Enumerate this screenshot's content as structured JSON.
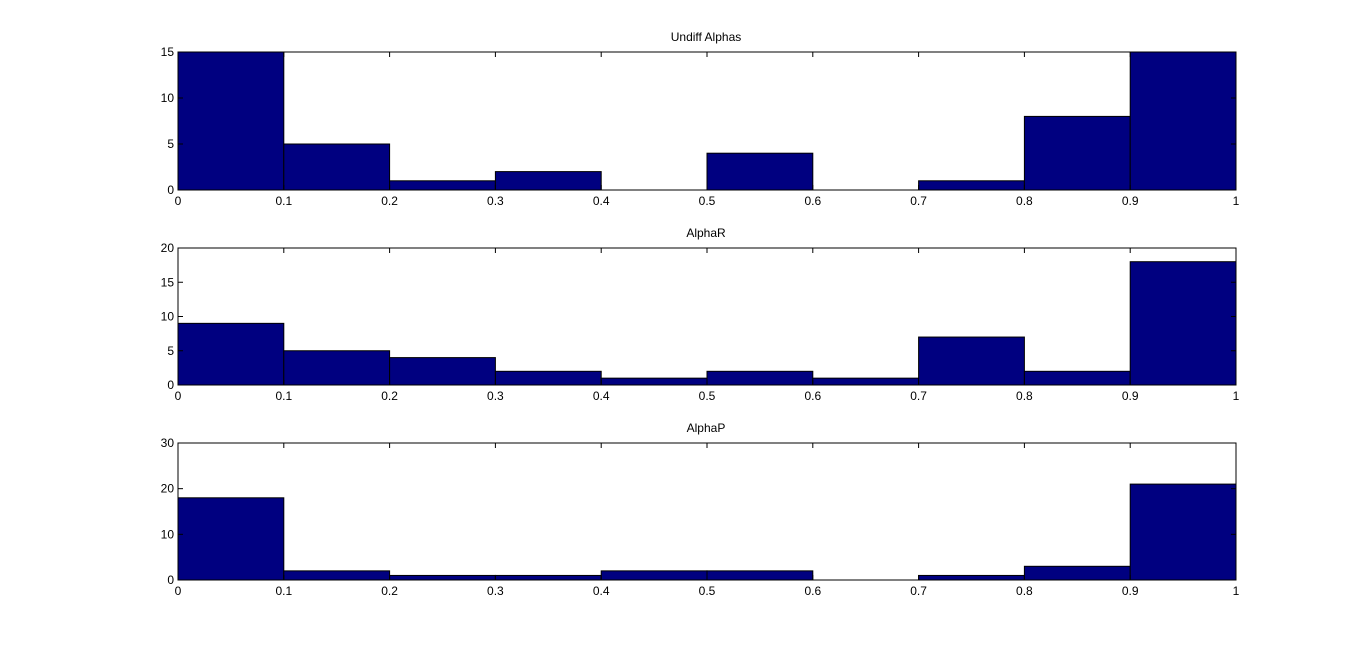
{
  "colors": {
    "bar_fill": "#000080",
    "bar_stroke": "#000000",
    "axes": "#000000",
    "background": "#ffffff"
  },
  "chart_data": [
    {
      "type": "bar",
      "title": "Undiff Alphas",
      "bins": [
        [
          0,
          0.1
        ],
        [
          0.1,
          0.2
        ],
        [
          0.2,
          0.3
        ],
        [
          0.3,
          0.4
        ],
        [
          0.4,
          0.5
        ],
        [
          0.5,
          0.6
        ],
        [
          0.6,
          0.7
        ],
        [
          0.7,
          0.8
        ],
        [
          0.8,
          0.9
        ],
        [
          0.9,
          1
        ]
      ],
      "values": [
        15,
        5,
        1,
        2,
        0,
        4,
        0,
        1,
        8,
        15
      ],
      "xlim": [
        0,
        1
      ],
      "ylim": [
        0,
        15
      ],
      "xticks": [
        "0",
        "0.1",
        "0.2",
        "0.3",
        "0.4",
        "0.5",
        "0.6",
        "0.7",
        "0.8",
        "0.9",
        "1"
      ],
      "yticks": [
        "0",
        "5",
        "10",
        "15"
      ],
      "grid": false
    },
    {
      "type": "bar",
      "title": "AlphaR",
      "bins": [
        [
          0,
          0.1
        ],
        [
          0.1,
          0.2
        ],
        [
          0.2,
          0.3
        ],
        [
          0.3,
          0.4
        ],
        [
          0.4,
          0.5
        ],
        [
          0.5,
          0.6
        ],
        [
          0.6,
          0.7
        ],
        [
          0.7,
          0.8
        ],
        [
          0.8,
          0.9
        ],
        [
          0.9,
          1
        ]
      ],
      "values": [
        9,
        5,
        4,
        2,
        1,
        2,
        1,
        7,
        2,
        18
      ],
      "xlim": [
        0,
        1
      ],
      "ylim": [
        0,
        20
      ],
      "xticks": [
        "0",
        "0.1",
        "0.2",
        "0.3",
        "0.4",
        "0.5",
        "0.6",
        "0.7",
        "0.8",
        "0.9",
        "1"
      ],
      "yticks": [
        "0",
        "5",
        "10",
        "15",
        "20"
      ],
      "grid": false
    },
    {
      "type": "bar",
      "title": "AlphaP",
      "bins": [
        [
          0,
          0.1
        ],
        [
          0.1,
          0.2
        ],
        [
          0.2,
          0.3
        ],
        [
          0.3,
          0.4
        ],
        [
          0.4,
          0.5
        ],
        [
          0.5,
          0.6
        ],
        [
          0.6,
          0.7
        ],
        [
          0.7,
          0.8
        ],
        [
          0.8,
          0.9
        ],
        [
          0.9,
          1
        ]
      ],
      "values": [
        18,
        2,
        1,
        1,
        2,
        2,
        0,
        1,
        3,
        21
      ],
      "xlim": [
        0,
        1
      ],
      "ylim": [
        0,
        30
      ],
      "xticks": [
        "0",
        "0.1",
        "0.2",
        "0.3",
        "0.4",
        "0.5",
        "0.6",
        "0.7",
        "0.8",
        "0.9",
        "1"
      ],
      "yticks": [
        "0",
        "10",
        "20",
        "30"
      ],
      "grid": false
    }
  ]
}
